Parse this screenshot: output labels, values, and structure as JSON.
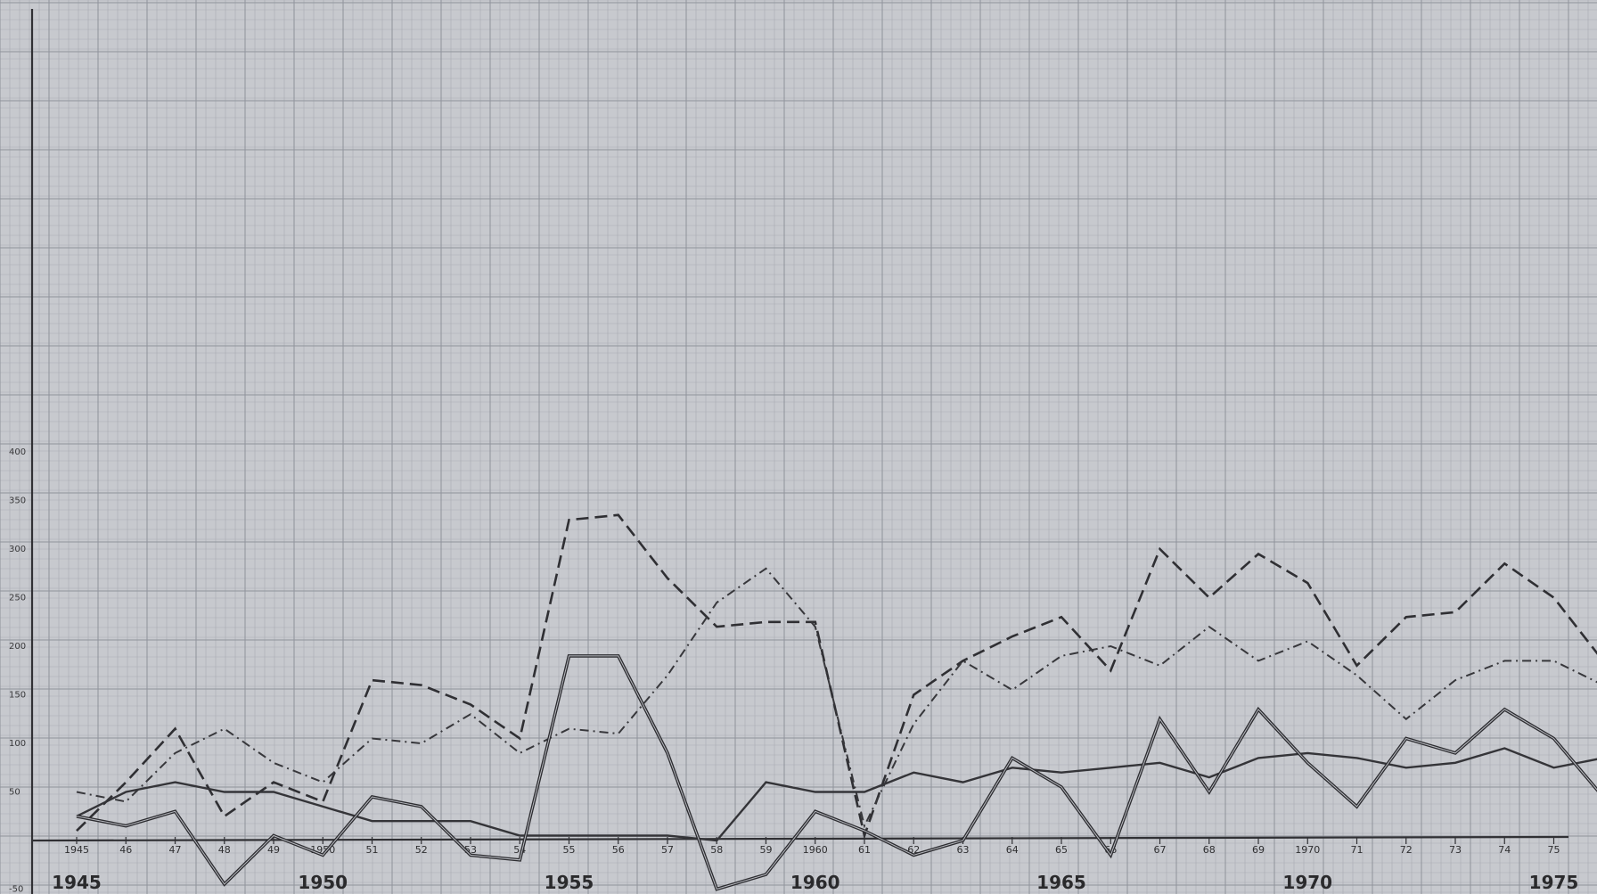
{
  "chart_data": {
    "type": "line",
    "title": "",
    "xlabel": "",
    "ylabel": "",
    "grid": true,
    "legend": "none",
    "xlim": [
      1945,
      1976
    ],
    "ylim": [
      -50,
      400
    ],
    "x": [
      1945,
      1946,
      1947,
      1948,
      1949,
      1950,
      1951,
      1952,
      1953,
      1954,
      1955,
      1956,
      1957,
      1958,
      1959,
      1960,
      1961,
      1962,
      1963,
      1964,
      1965,
      1966,
      1967,
      1968,
      1969,
      1970,
      1971,
      1972,
      1973,
      1974,
      1975,
      1976
    ],
    "y_tick_labels": [
      {
        "value": 400,
        "label": "400"
      },
      {
        "value": 350,
        "label": "350"
      },
      {
        "value": 300,
        "label": "300"
      },
      {
        "value": 250,
        "label": "250"
      },
      {
        "value": 200,
        "label": "200"
      },
      {
        "value": 150,
        "label": "150"
      },
      {
        "value": 100,
        "label": "100"
      },
      {
        "value": 50,
        "label": "50"
      },
      {
        "value": -50,
        "label": "-50"
      }
    ],
    "x_tick_labels_small": [
      {
        "value": 1945,
        "label": "1945"
      },
      {
        "value": 1946,
        "label": "46"
      },
      {
        "value": 1947,
        "label": "47"
      },
      {
        "value": 1948,
        "label": "48"
      },
      {
        "value": 1949,
        "label": "49"
      },
      {
        "value": 1950,
        "label": "1950"
      },
      {
        "value": 1951,
        "label": "51"
      },
      {
        "value": 1952,
        "label": "52"
      },
      {
        "value": 1953,
        "label": "53"
      },
      {
        "value": 1954,
        "label": "54"
      },
      {
        "value": 1955,
        "label": "55"
      },
      {
        "value": 1956,
        "label": "56"
      },
      {
        "value": 1957,
        "label": "57"
      },
      {
        "value": 1958,
        "label": "58"
      },
      {
        "value": 1959,
        "label": "59"
      },
      {
        "value": 1960,
        "label": "1960"
      },
      {
        "value": 1961,
        "label": "61"
      },
      {
        "value": 1962,
        "label": "62"
      },
      {
        "value": 1963,
        "label": "63"
      },
      {
        "value": 1964,
        "label": "64"
      },
      {
        "value": 1965,
        "label": "65"
      },
      {
        "value": 1966,
        "label": "66"
      },
      {
        "value": 1967,
        "label": "67"
      },
      {
        "value": 1968,
        "label": "68"
      },
      {
        "value": 1969,
        "label": "69"
      },
      {
        "value": 1970,
        "label": "1970"
      },
      {
        "value": 1971,
        "label": "71"
      },
      {
        "value": 1972,
        "label": "72"
      },
      {
        "value": 1973,
        "label": "73"
      },
      {
        "value": 1974,
        "label": "74"
      },
      {
        "value": 1975,
        "label": "75"
      }
    ],
    "x_tick_labels_major": [
      {
        "value": 1945,
        "label": "1945"
      },
      {
        "value": 1950,
        "label": "1950"
      },
      {
        "value": 1955,
        "label": "1955"
      },
      {
        "value": 1960,
        "label": "1960"
      },
      {
        "value": 1965,
        "label": "1965"
      },
      {
        "value": 1970,
        "label": "1970"
      },
      {
        "value": 1975,
        "label": "1975"
      }
    ],
    "series": [
      {
        "style": "dashed",
        "values": [
          10,
          60,
          115,
          25,
          60,
          40,
          165,
          160,
          140,
          105,
          330,
          335,
          270,
          220,
          225,
          225,
          5,
          150,
          185,
          210,
          230,
          175,
          300,
          250,
          295,
          265,
          180,
          230,
          235,
          285,
          250,
          185
        ]
      },
      {
        "style": "dash-dot",
        "values": [
          50,
          40,
          90,
          115,
          80,
          60,
          105,
          100,
          130,
          90,
          115,
          110,
          170,
          245,
          280,
          220,
          15,
          120,
          185,
          155,
          190,
          200,
          180,
          220,
          185,
          205,
          170,
          125,
          165,
          185,
          185,
          160
        ]
      },
      {
        "style": "solid-thin",
        "values": [
          25,
          50,
          60,
          50,
          50,
          35,
          20,
          20,
          20,
          5,
          5,
          5,
          5,
          0,
          60,
          50,
          50,
          70,
          60,
          75,
          70,
          75,
          80,
          65,
          85,
          90,
          85,
          75,
          80,
          95,
          75,
          85
        ]
      },
      {
        "style": "solid-double",
        "values": [
          25,
          15,
          30,
          -45,
          5,
          -15,
          45,
          35,
          -15,
          -20,
          190,
          190,
          90,
          -50,
          -35,
          30,
          10,
          -15,
          0,
          85,
          55,
          -15,
          125,
          50,
          135,
          80,
          35,
          105,
          90,
          135,
          105,
          45
        ]
      }
    ]
  }
}
